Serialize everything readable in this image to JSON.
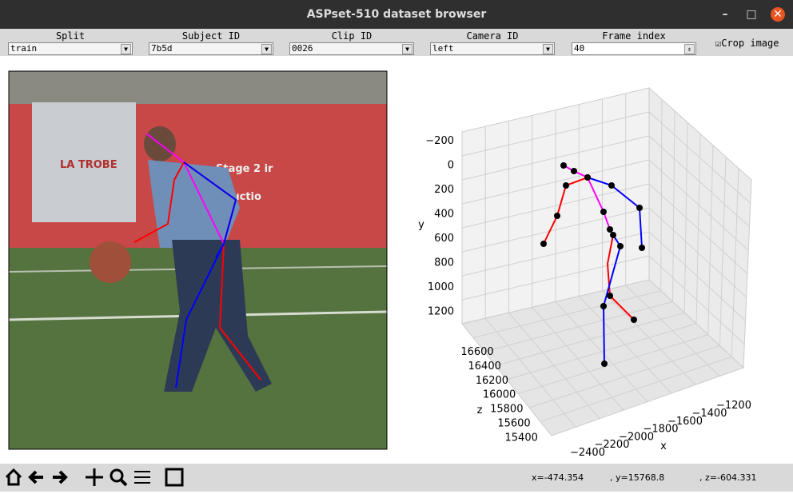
{
  "window": {
    "title": "ASPset-510 dataset browser"
  },
  "controls": [
    {
      "label": "Split",
      "value": "train"
    },
    {
      "label": "Subject ID",
      "value": "7b5d"
    },
    {
      "label": "Clip ID",
      "value": "0026"
    },
    {
      "label": "Camera ID",
      "value": "left"
    },
    {
      "label": "Frame index",
      "value": "40"
    }
  ],
  "crop_image": {
    "label": "Crop image",
    "checked": true
  },
  "plot": {
    "y_label": "y",
    "z_label": "z",
    "x_label": "x",
    "y_ticks": [
      "−200",
      "0",
      "200",
      "400",
      "600",
      "800",
      "1000",
      "1200"
    ],
    "z_ticks": [
      "16600",
      "16400",
      "16200",
      "16000",
      "15800",
      "15600",
      "15400"
    ],
    "x_ticks": [
      "−2400",
      "−2200",
      "−2000",
      "−1800",
      "−1600",
      "−1400",
      "−1200"
    ]
  },
  "status": {
    "x": "x=-474.354",
    "y": ", y=15768.8",
    "z": ", z=-604.331"
  }
}
